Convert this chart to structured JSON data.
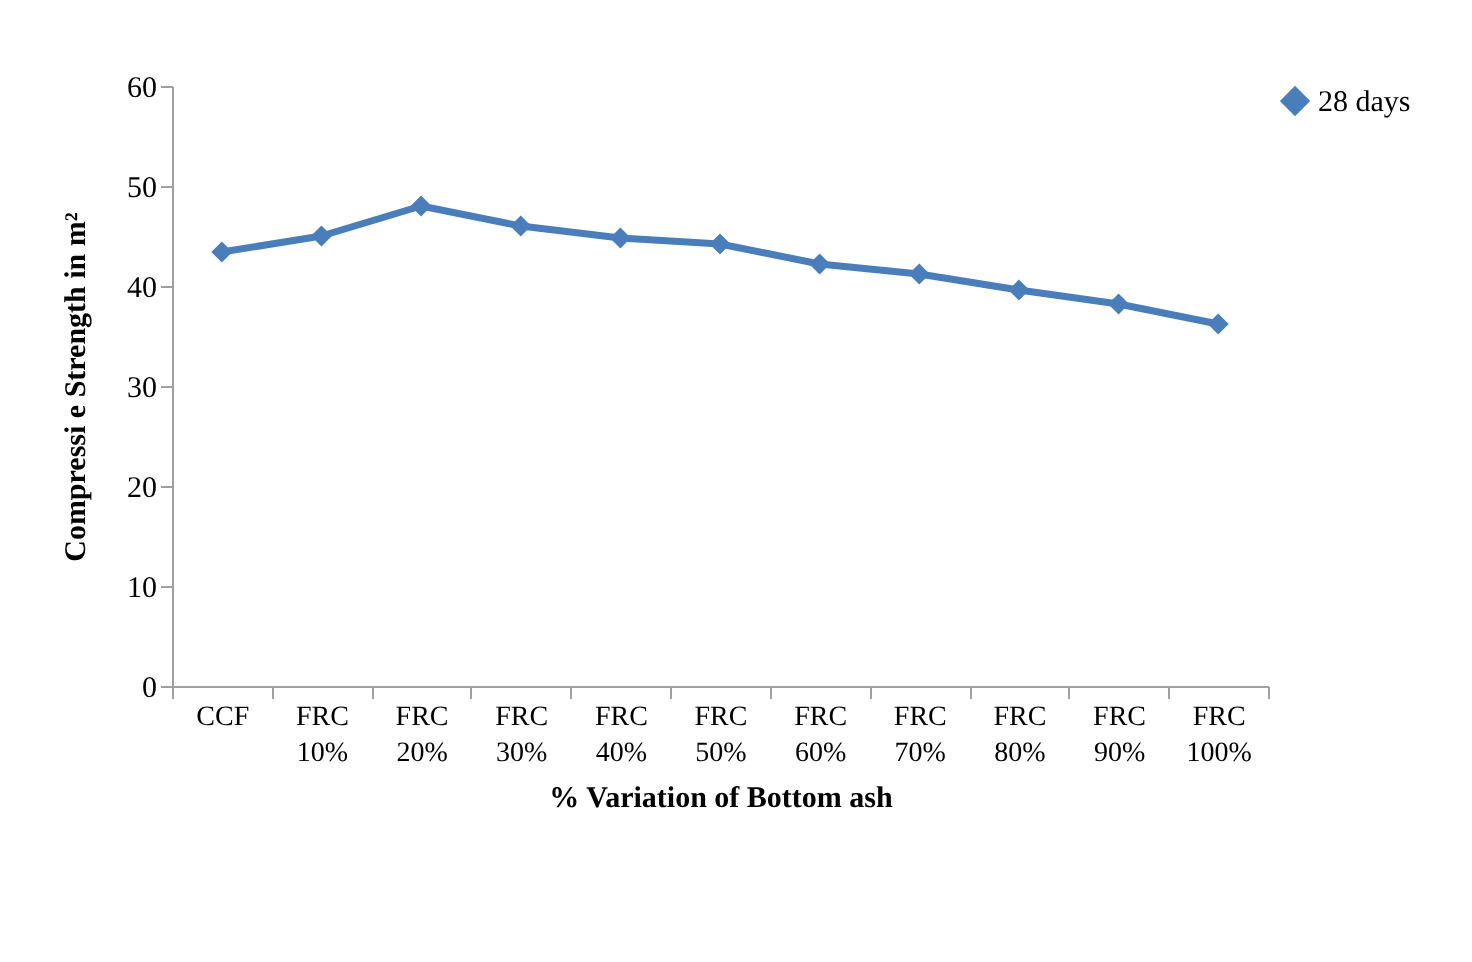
{
  "chart_data": {
    "type": "line",
    "xlabel": "% Variation of Bottom ash",
    "ylabel": "Compressi e Strength in m²",
    "categories": [
      "CCF",
      "FRC 10%",
      "FRC 20%",
      "FRC 30%",
      "FRC 40%",
      "FRC 50%",
      "FRC 60%",
      "FRC 70%",
      "FRC 80%",
      "FRC 90%",
      "FRC 100%"
    ],
    "series": [
      {
        "name": "28 days",
        "color": "#4a7ebb",
        "values": [
          43.4,
          45,
          48,
          46,
          44.8,
          44.2,
          42.2,
          41.2,
          39.6,
          38.2,
          36.2
        ]
      }
    ],
    "ylim": [
      0,
      60
    ],
    "yticks": [
      0,
      10,
      20,
      30,
      40,
      50,
      60
    ],
    "grid": false,
    "legend": "right",
    "marker": "diamond"
  }
}
